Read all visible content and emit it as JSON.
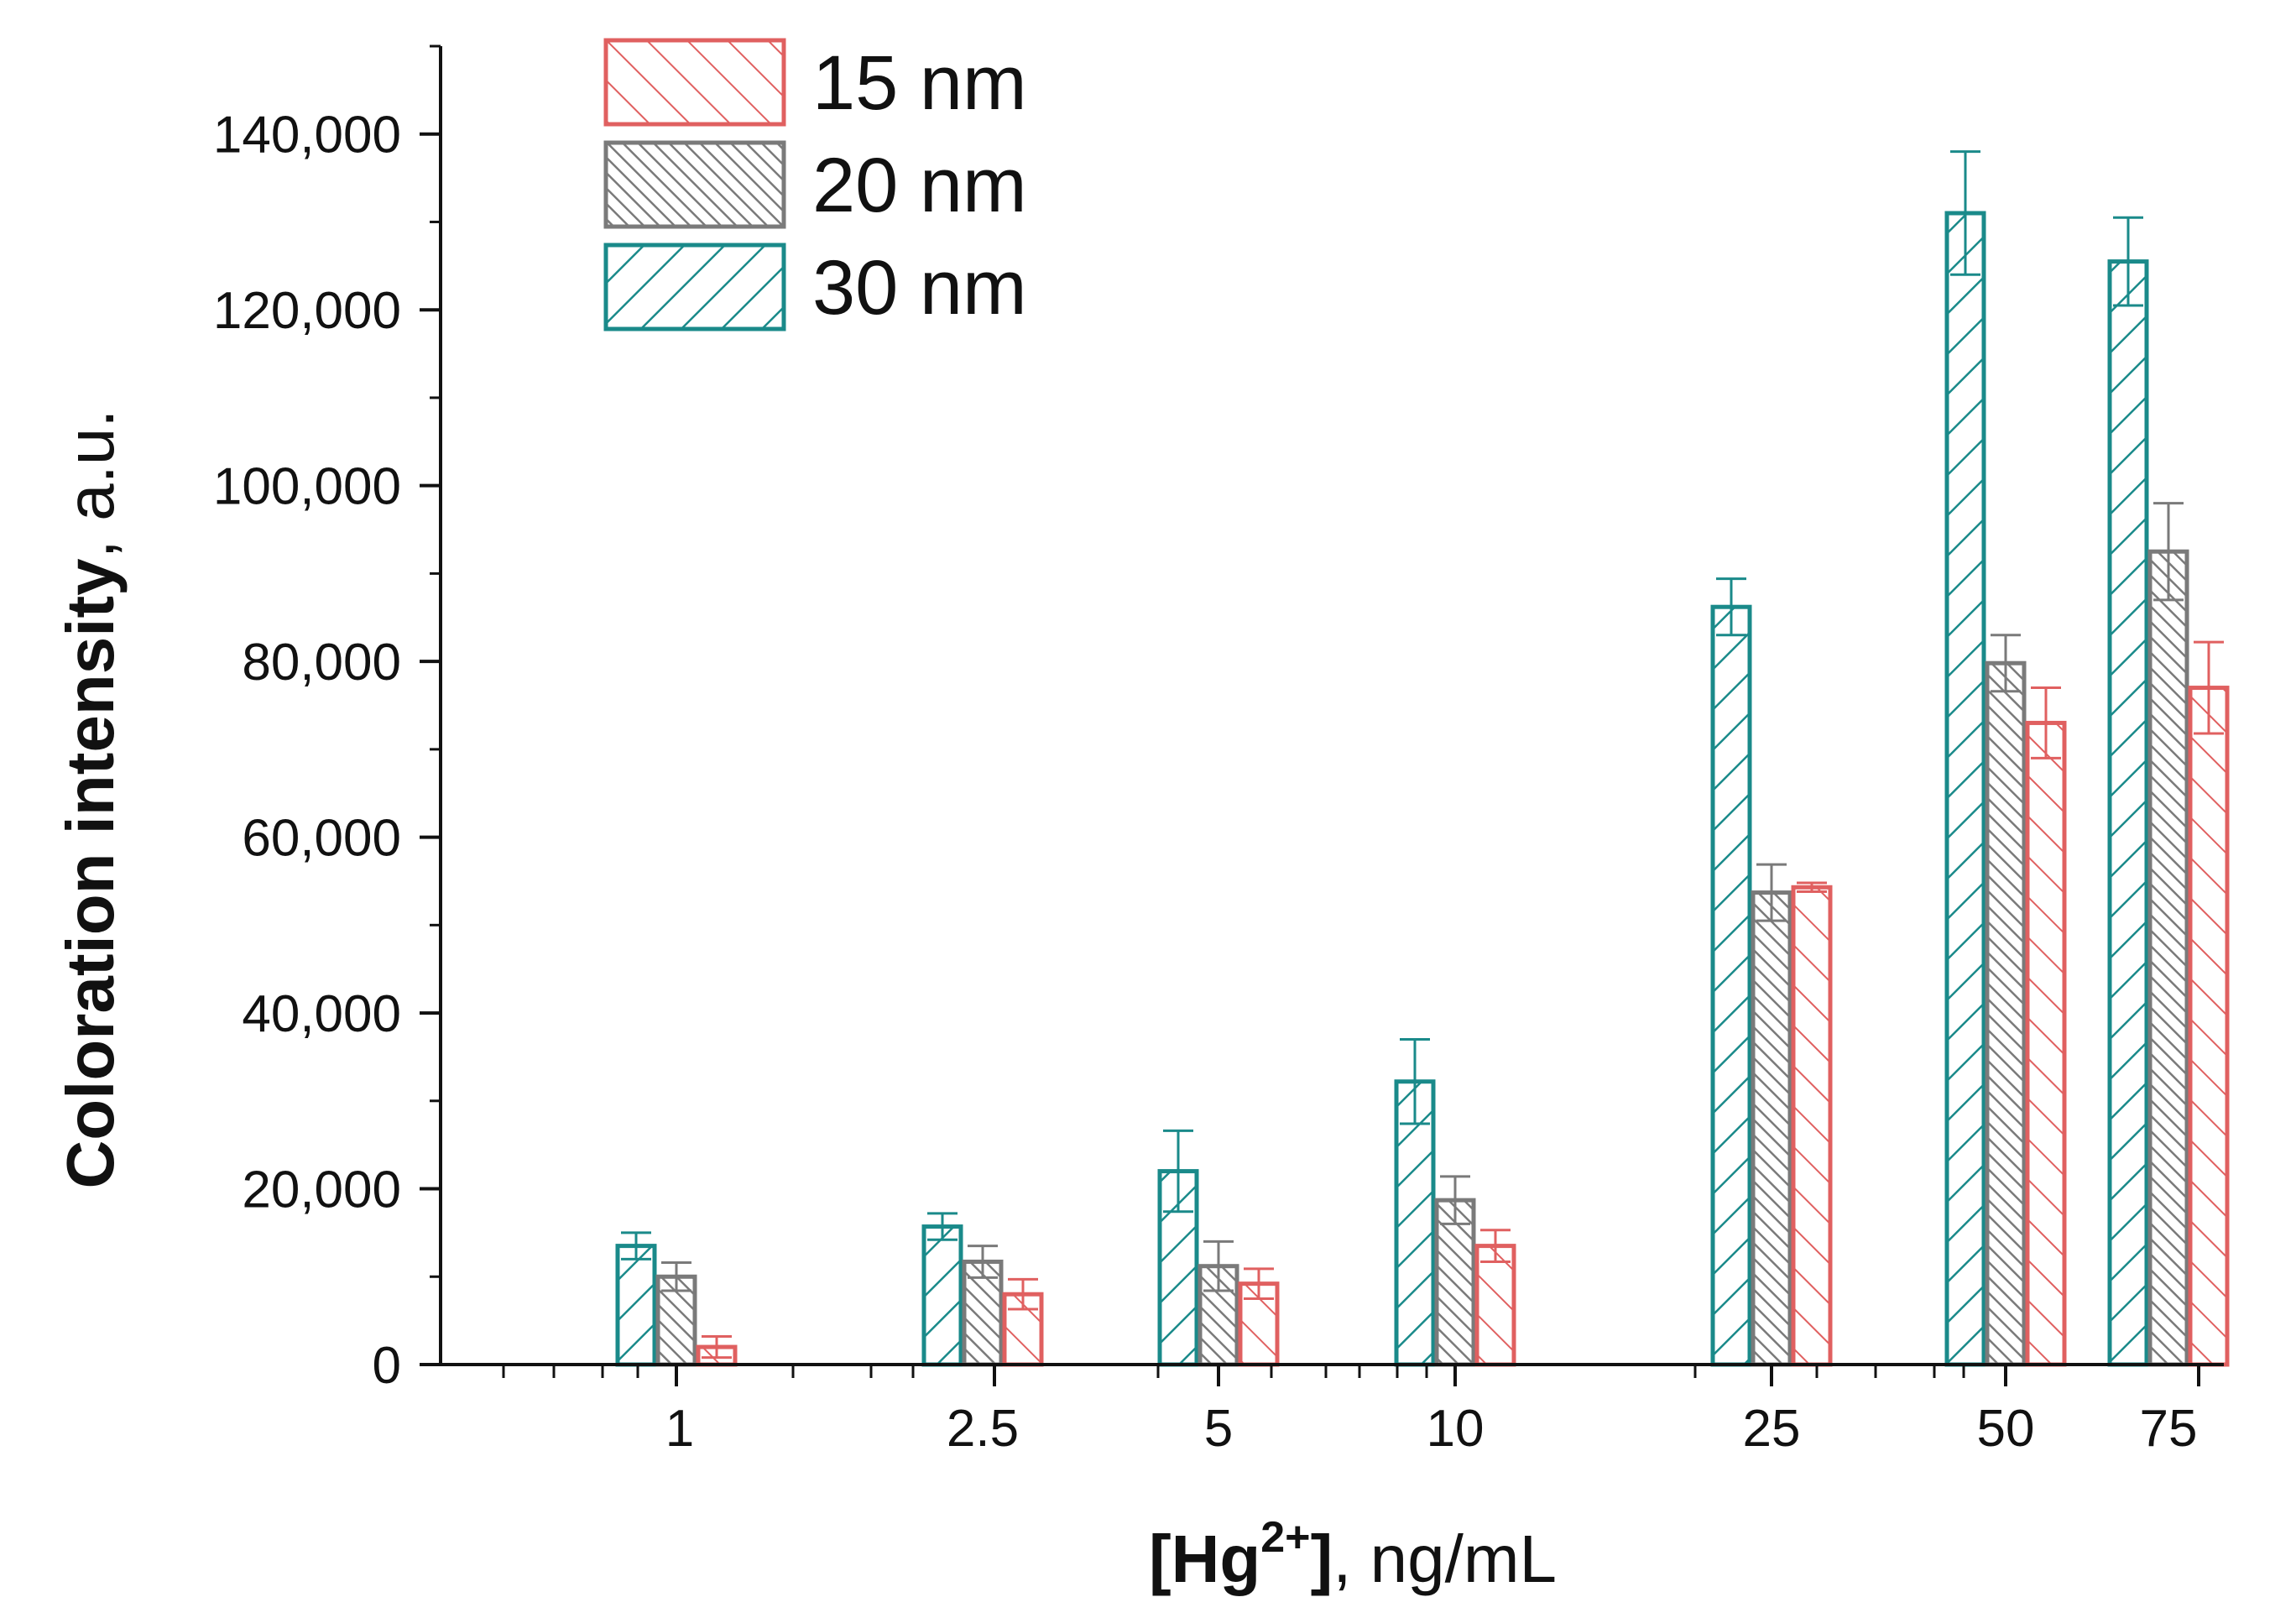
{
  "chart_data": {
    "type": "bar",
    "title": "",
    "xlabel_parts": {
      "bracket_open": "[Hg",
      "superscript": "2+",
      "bracket_close": "]",
      "unit": ", ng/mL"
    },
    "ylabel_parts": {
      "bold": "Coloration intensity",
      "normal": ", a.u."
    },
    "categories": [
      "1",
      "2.5",
      "5",
      "10",
      "25",
      "50",
      "75"
    ],
    "yticks": [
      "0",
      "20,000",
      "40,000",
      "60,000",
      "80,000",
      "100,000",
      "120,000",
      "140,000"
    ],
    "ylim": [
      0,
      150000
    ],
    "legend_position": "top-left",
    "series": [
      {
        "name": "30 nm",
        "color": "#1a8a8a",
        "hatch": "forward",
        "values": [
          13500,
          15700,
          22000,
          32200,
          86200,
          131000,
          125500
        ],
        "errors": [
          1500,
          1500,
          4600,
          4800,
          3200,
          7000,
          5000
        ]
      },
      {
        "name": "20 nm",
        "color": "#7a7a7a",
        "hatch": "dense-backward",
        "values": [
          10000,
          11700,
          11200,
          18700,
          53700,
          79800,
          92500
        ],
        "errors": [
          1600,
          1800,
          2800,
          2700,
          3200,
          3200,
          5500
        ]
      },
      {
        "name": "15 nm",
        "color": "#e06060",
        "hatch": "backward",
        "values": [
          2000,
          8000,
          9200,
          13500,
          54300,
          73000,
          77000
        ],
        "errors": [
          1200,
          1700,
          1700,
          1800,
          500,
          4000,
          5200
        ]
      }
    ],
    "legend_order": [
      "15 nm",
      "20 nm",
      "30 nm"
    ]
  }
}
